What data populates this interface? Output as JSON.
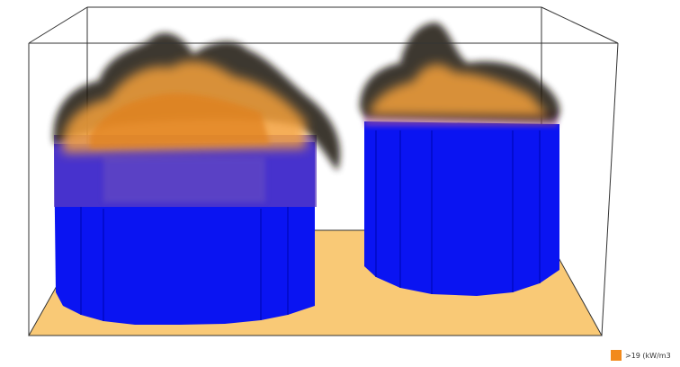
{
  "colors": {
    "background": "#ffffff",
    "floor": "#f9c976",
    "tank": "#0a14f2",
    "flame": "#f4a03a",
    "smoke": "#1a1208",
    "frame": "#333333"
  },
  "legend": {
    "label": ">19 (kW/m3",
    "swatch_color": "#f28a1c"
  }
}
